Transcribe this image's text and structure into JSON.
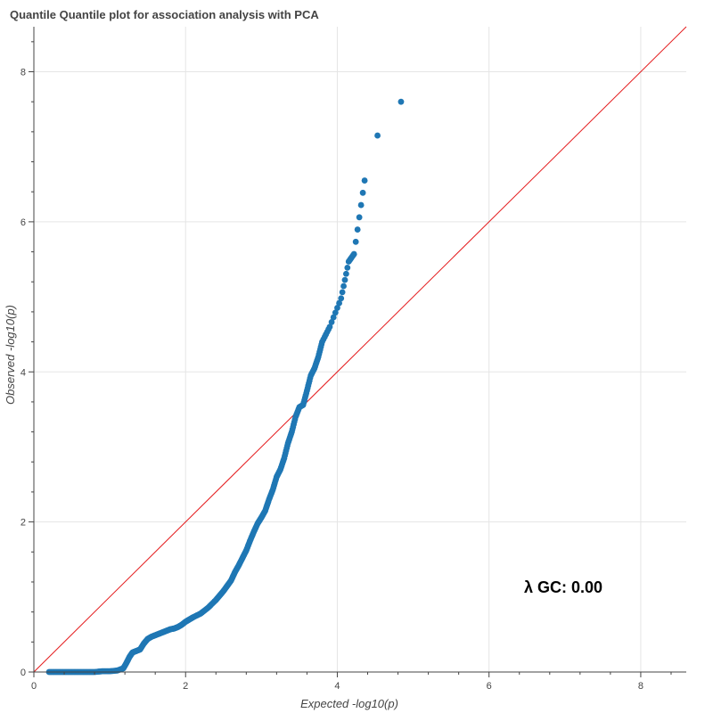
{
  "chart_data": {
    "type": "scatter",
    "title": "Quantile Quantile plot for association analysis with PCA",
    "xlabel": "Expected -log10(p)",
    "ylabel": "Observed -log10(p)",
    "xlim": [
      0,
      8.6
    ],
    "ylim": [
      0,
      8.6
    ],
    "x_ticks": [
      0,
      2,
      4,
      6,
      8
    ],
    "y_ticks": [
      0,
      2,
      4,
      6,
      8
    ],
    "grid": true,
    "annotation": "λ GC: 0.00",
    "reference_line": "y = x",
    "colors": {
      "points": "#1f77b4",
      "reference_line": "#e41a1c",
      "grid": "#e5e5e5",
      "axis": "#444444"
    },
    "x": [
      0.2,
      0.3,
      0.4,
      0.5,
      0.6,
      0.7,
      0.8,
      0.9,
      1.0,
      1.1,
      1.18,
      1.22,
      1.26,
      1.3,
      1.35,
      1.4,
      1.45,
      1.5,
      1.55,
      1.6,
      1.65,
      1.7,
      1.75,
      1.8,
      1.85,
      1.9,
      1.95,
      2.0,
      2.05,
      2.1,
      2.2,
      2.3,
      2.4,
      2.45,
      2.5,
      2.55,
      2.6,
      2.65,
      2.7,
      2.75,
      2.8,
      2.85,
      2.9,
      2.95,
      3.0,
      3.05,
      3.1,
      3.15,
      3.2,
      3.25,
      3.3,
      3.35,
      3.4,
      3.45,
      3.5,
      3.55,
      3.6,
      3.65,
      3.7,
      3.75,
      3.8,
      3.9,
      4.05,
      4.15,
      4.22,
      4.36,
      4.53,
      4.84
    ],
    "y": [
      0.0,
      0.0,
      0.0,
      0.0,
      0.0,
      0.0,
      0.0,
      0.01,
      0.01,
      0.02,
      0.05,
      0.12,
      0.2,
      0.26,
      0.28,
      0.3,
      0.38,
      0.44,
      0.47,
      0.49,
      0.51,
      0.53,
      0.55,
      0.57,
      0.58,
      0.6,
      0.63,
      0.67,
      0.7,
      0.73,
      0.78,
      0.86,
      0.96,
      1.02,
      1.08,
      1.15,
      1.22,
      1.33,
      1.42,
      1.52,
      1.62,
      1.75,
      1.87,
      1.98,
      2.06,
      2.15,
      2.3,
      2.43,
      2.6,
      2.7,
      2.85,
      3.05,
      3.2,
      3.4,
      3.53,
      3.56,
      3.75,
      3.95,
      4.05,
      4.2,
      4.4,
      4.6,
      4.98,
      5.47,
      5.57,
      6.55,
      7.15,
      7.6
    ]
  }
}
